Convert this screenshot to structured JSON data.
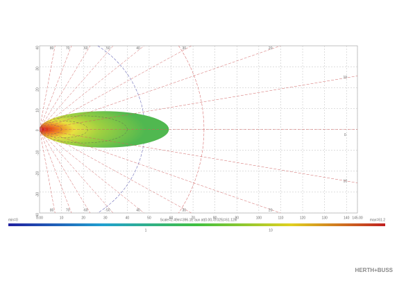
{
  "chart_data": {
    "type": "beam",
    "xlim": [
      0,
      145
    ],
    "xticks": [
      {
        "value": 0,
        "label": "0.00"
      },
      10,
      20,
      30,
      40,
      50,
      60,
      70,
      80,
      90,
      100,
      110,
      120,
      130,
      140,
      {
        "value": 145,
        "label": "145.00"
      }
    ],
    "ylim": [
      -40,
      40
    ],
    "yticks": [
      -40,
      -30,
      -20,
      -10,
      0,
      10,
      20,
      30,
      40
    ],
    "grid": true,
    "rays": [
      0,
      10,
      20,
      30,
      40,
      50,
      60,
      70,
      80
    ],
    "arcs": [
      {
        "radius": 48,
        "color": "#6a6ab8"
      },
      {
        "radius": 75,
        "color": "#d87070"
      }
    ],
    "beam": {
      "length": 59,
      "half_width": 8.7
    },
    "contours": [
      {
        "length": 40,
        "half_width": 6.5
      },
      {
        "length": 22,
        "half_width": 4
      },
      {
        "length": 10,
        "half_width": 2.2
      }
    ],
    "legend": {
      "min": "min=0",
      "max": "max=61.2",
      "caption": "Scale=2.49m=396.1E  aux at(0.00,-0.025)=61.12lx",
      "marks": [
        "1",
        "10"
      ]
    },
    "brand": "HERTH+BUSS"
  }
}
